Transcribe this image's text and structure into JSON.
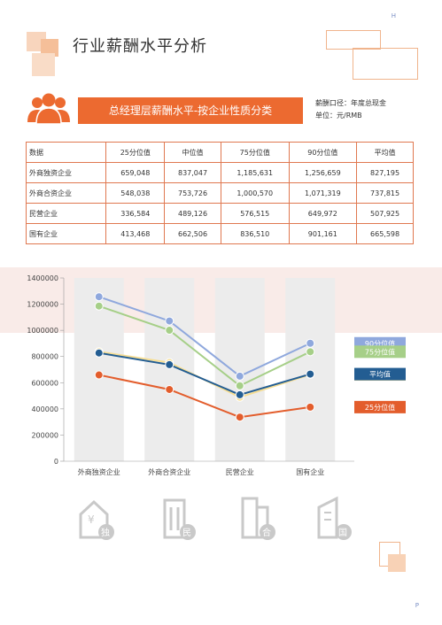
{
  "page": {
    "corner_top": "H",
    "corner_bottom": "P"
  },
  "header": {
    "title": "行业薪酬水平分析"
  },
  "banner": {
    "title": "总经理层薪酬水平-按企业性质分类"
  },
  "note": {
    "line1": "薪酬口径：年度总现金",
    "line2": "单位：元/RMB"
  },
  "table": {
    "headers": [
      "数据",
      "25分位值",
      "中位值",
      "75分位值",
      "90分位值",
      "平均值"
    ],
    "rows": [
      [
        "外商独资企业",
        "659,048",
        "837,047",
        "1,185,631",
        "1,256,659",
        "827,195"
      ],
      [
        "外商合资企业",
        "548,038",
        "753,726",
        "1,000,570",
        "1,071,319",
        "737,815"
      ],
      [
        "民营企业",
        "336,584",
        "489,126",
        "576,515",
        "649,972",
        "507,925"
      ],
      [
        "国有企业",
        "413,468",
        "662,506",
        "836,510",
        "901,161",
        "665,598"
      ]
    ]
  },
  "chart_data": {
    "type": "line",
    "categories": [
      "外商独资企业",
      "外商合资企业",
      "民营企业",
      "国有企业"
    ],
    "ylim": [
      0,
      1400000
    ],
    "yticks": [
      "0",
      "200000",
      "400000",
      "600000",
      "800000",
      "1000000",
      "1200000",
      "1400000"
    ],
    "series": [
      {
        "name": "90分位值",
        "color": "#8fa8dd",
        "values": [
          1256659,
          1071319,
          649972,
          901161
        ]
      },
      {
        "name": "75分位值",
        "color": "#a6cf88",
        "values": [
          1185631,
          1000570,
          576515,
          836510
        ]
      },
      {
        "name": "中位值",
        "color": "#f7de93",
        "values": [
          837047,
          753726,
          489126,
          662506
        ]
      },
      {
        "name": "平均值",
        "color": "#235d92",
        "values": [
          827195,
          737815,
          507925,
          665598
        ]
      },
      {
        "name": "25分位值",
        "color": "#e35d2c",
        "values": [
          659048,
          548038,
          336584,
          413468
        ]
      }
    ],
    "legend_position": "right"
  },
  "bottom_icons": [
    {
      "name": "foreign-owned-building-icon",
      "label": "独"
    },
    {
      "name": "joint-venture-building-icon",
      "label": "民"
    },
    {
      "name": "private-building-icon",
      "label": "合"
    },
    {
      "name": "state-owned-building-icon",
      "label": "国"
    }
  ]
}
